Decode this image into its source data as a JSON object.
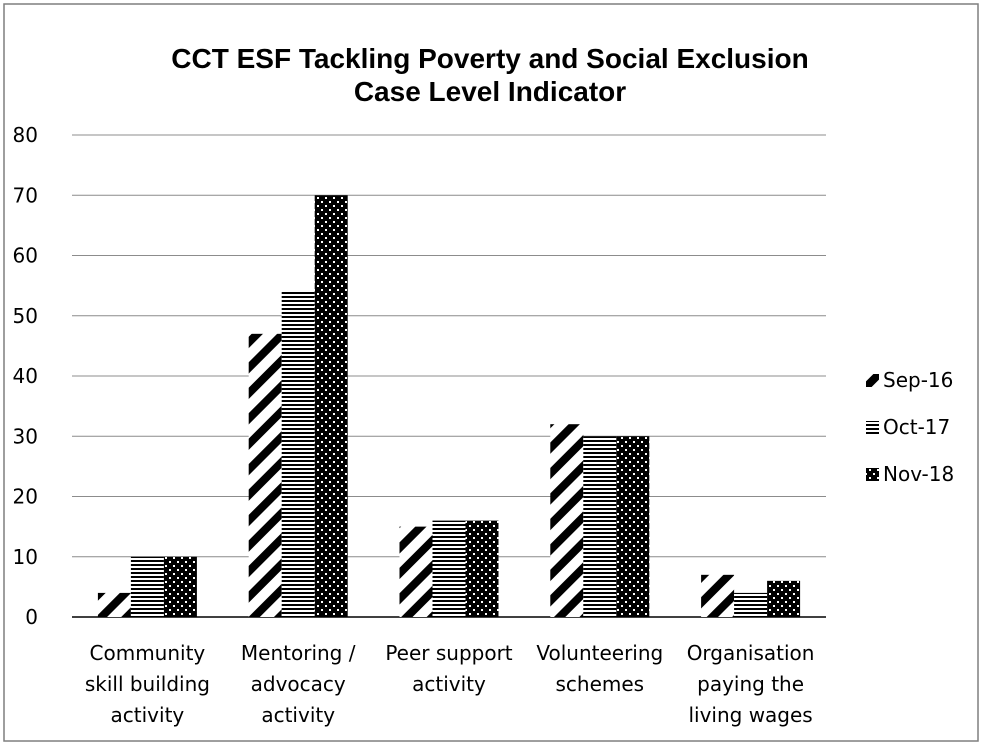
{
  "chart_data": {
    "type": "bar",
    "title": [
      "CCT ESF Tackling Poverty and Social Exclusion",
      "Case Level Indicator"
    ],
    "categories": [
      [
        "Community",
        "skill building",
        "activity"
      ],
      [
        "Mentoring /",
        "advocacy",
        "activity"
      ],
      [
        "Peer support",
        "activity"
      ],
      [
        "Volunteering",
        "schemes"
      ],
      [
        "Organisation",
        "paying the",
        "living wages"
      ]
    ],
    "series": [
      {
        "name": "Sep-16",
        "pattern": "diagonal-stripes",
        "values": [
          4,
          47,
          15,
          32,
          7
        ]
      },
      {
        "name": "Oct-17",
        "pattern": "horizontal-stripes",
        "values": [
          10,
          54,
          16,
          30,
          4
        ]
      },
      {
        "name": "Nov-18",
        "pattern": "dotted-black",
        "values": [
          10,
          70,
          16,
          30,
          6
        ]
      }
    ],
    "yticks": [
      0,
      10,
      20,
      30,
      40,
      50,
      60,
      70,
      80
    ],
    "ylim": [
      0,
      80
    ],
    "grid": true,
    "legend_position": "right",
    "colors": {
      "ink": "#000000",
      "grid": "#8c8c8c",
      "frame": "#7f7f7f",
      "background": "#ffffff"
    }
  }
}
